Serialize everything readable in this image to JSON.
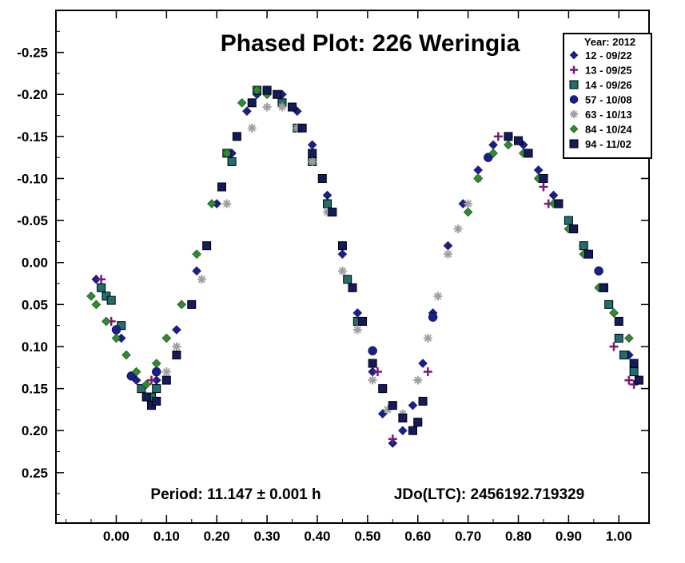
{
  "chart_data": {
    "type": "scatter",
    "title": "Phased Plot: 226 Weringia",
    "xlabel": "",
    "ylabel": "",
    "xlim": [
      -0.12,
      1.06
    ],
    "ylim": [
      0.31,
      -0.3
    ],
    "y_inverted": true,
    "grid": false,
    "x_ticks": [
      {
        "value": 0.0,
        "label": "0.00"
      },
      {
        "value": 0.1,
        "label": "0.10"
      },
      {
        "value": 0.2,
        "label": "0.20"
      },
      {
        "value": 0.3,
        "label": "0.30"
      },
      {
        "value": 0.4,
        "label": "0.40"
      },
      {
        "value": 0.5,
        "label": "0.50"
      },
      {
        "value": 0.6,
        "label": "0.60"
      },
      {
        "value": 0.7,
        "label": "0.70"
      },
      {
        "value": 0.8,
        "label": "0.80"
      },
      {
        "value": 0.9,
        "label": "0.90"
      },
      {
        "value": 1.0,
        "label": "1.00"
      }
    ],
    "y_ticks": [
      {
        "value": -0.25,
        "label": "-0.25"
      },
      {
        "value": -0.2,
        "label": "-0.20"
      },
      {
        "value": -0.15,
        "label": "-0.15"
      },
      {
        "value": -0.1,
        "label": "-0.10"
      },
      {
        "value": -0.05,
        "label": "-0.05"
      },
      {
        "value": 0.0,
        "label": "0.00"
      },
      {
        "value": 0.05,
        "label": "0.05"
      },
      {
        "value": 0.1,
        "label": "0.10"
      },
      {
        "value": 0.15,
        "label": "0.15"
      },
      {
        "value": 0.2,
        "label": "0.20"
      },
      {
        "value": 0.25,
        "label": "0.25"
      }
    ],
    "legend": {
      "title": "Year: 2012",
      "placement": "top-right",
      "entries": [
        {
          "label": "12 - 09/22",
          "marker": "diamond",
          "color": "#1a1f8f"
        },
        {
          "label": "13 - 09/25",
          "marker": "plus",
          "color": "#7a1a7a"
        },
        {
          "label": "14 - 09/26",
          "marker": "square",
          "color": "#1f6f6f"
        },
        {
          "label": "57 - 10/08",
          "marker": "circle",
          "color": "#1a1f8f"
        },
        {
          "label": "63 - 10/13",
          "marker": "asterisk",
          "color": "#a0a0a0"
        },
        {
          "label": "84 - 10/24",
          "marker": "diamond",
          "color": "#2e8b2e"
        },
        {
          "label": "94 - 11/02",
          "marker": "square",
          "color": "#141a5e"
        }
      ]
    },
    "annotations": {
      "period": "Period: 11.147 ± 0.001 h",
      "epoch": "JDo(LTC): 2456192.719329"
    },
    "series": [
      {
        "name": "12 - 09/22",
        "marker": "diamond",
        "color": "#1a1f8f",
        "x": [
          -0.04,
          -0.03,
          0.01,
          0.04,
          0.06,
          0.08,
          0.12,
          0.16,
          0.2,
          0.23,
          0.26,
          0.28,
          0.3,
          0.33,
          0.36,
          0.39,
          0.42,
          0.45,
          0.48,
          0.51,
          0.53,
          0.55,
          0.57,
          0.59,
          0.61,
          0.63,
          0.66,
          0.69,
          0.72,
          0.75,
          0.78,
          0.81,
          0.84,
          0.87,
          0.9,
          0.93,
          0.96,
          0.99,
          1.02
        ],
        "y": [
          0.02,
          0.03,
          0.09,
          0.14,
          0.16,
          0.14,
          0.08,
          0.01,
          -0.07,
          -0.13,
          -0.18,
          -0.2,
          -0.205,
          -0.2,
          -0.18,
          -0.14,
          -0.08,
          -0.01,
          0.06,
          0.13,
          0.18,
          0.215,
          0.2,
          0.17,
          0.12,
          0.06,
          -0.02,
          -0.07,
          -0.11,
          -0.14,
          -0.15,
          -0.14,
          -0.11,
          -0.08,
          -0.05,
          -0.02,
          0.01,
          0.06,
          0.11
        ]
      },
      {
        "name": "13 - 09/25",
        "marker": "plus",
        "color": "#7a1a7a",
        "x": [
          -0.03,
          -0.01,
          0.07,
          0.51,
          0.52,
          0.53,
          0.55,
          0.6,
          0.62,
          0.76,
          0.85,
          0.86,
          0.99,
          1.02,
          1.03
        ],
        "y": [
          0.02,
          0.07,
          0.14,
          0.105,
          0.13,
          0.15,
          0.21,
          0.19,
          0.13,
          -0.15,
          -0.09,
          -0.07,
          0.1,
          0.14,
          0.145
        ]
      },
      {
        "name": "14 - 09/26",
        "marker": "square",
        "color": "#1f6f6f",
        "x": [
          -0.03,
          -0.02,
          -0.01,
          0.01,
          0.05,
          0.07,
          0.08,
          0.22,
          0.23,
          0.28,
          0.33,
          0.36,
          0.39,
          0.42,
          0.46,
          0.48,
          0.85,
          0.88,
          0.9,
          0.93,
          0.97,
          0.98,
          1.0,
          1.01,
          1.03
        ],
        "y": [
          0.03,
          0.04,
          0.045,
          0.075,
          0.15,
          0.16,
          0.15,
          -0.13,
          -0.12,
          -0.205,
          -0.19,
          -0.16,
          -0.12,
          -0.07,
          0.02,
          0.07,
          -0.1,
          -0.07,
          -0.05,
          -0.02,
          0.03,
          0.05,
          0.09,
          0.11,
          0.13
        ]
      },
      {
        "name": "57 - 10/08",
        "marker": "circle",
        "color": "#1a1f8f",
        "x": [
          0.0,
          0.03,
          0.08,
          0.51,
          0.63,
          0.74,
          0.96
        ],
        "y": [
          0.08,
          0.135,
          0.13,
          0.105,
          0.065,
          -0.125,
          0.01
        ]
      },
      {
        "name": "63 - 10/13",
        "marker": "asterisk",
        "color": "#a0a0a0",
        "x": [
          0.1,
          0.12,
          0.17,
          0.22,
          0.27,
          0.3,
          0.33,
          0.36,
          0.39,
          0.42,
          0.45,
          0.48,
          0.51,
          0.54,
          0.57,
          0.6,
          0.62,
          0.64,
          0.66,
          0.68,
          0.7,
          0.72
        ],
        "y": [
          0.13,
          0.1,
          0.02,
          -0.07,
          -0.16,
          -0.185,
          -0.185,
          -0.16,
          -0.12,
          -0.06,
          0.01,
          0.08,
          0.14,
          0.175,
          0.18,
          0.14,
          0.09,
          0.04,
          -0.01,
          -0.04,
          -0.07,
          -0.1
        ]
      },
      {
        "name": "84 - 10/24",
        "marker": "diamond",
        "color": "#2e8b2e",
        "x": [
          -0.05,
          -0.04,
          -0.02,
          0.0,
          0.02,
          0.04,
          0.06,
          0.08,
          0.1,
          0.13,
          0.16,
          0.19,
          0.22,
          0.25,
          0.28,
          0.3,
          0.7,
          0.72,
          0.75,
          0.78,
          0.81,
          0.84,
          0.87,
          0.9,
          0.93,
          0.96,
          0.99,
          1.02
        ],
        "y": [
          0.04,
          0.05,
          0.07,
          0.09,
          0.11,
          0.13,
          0.145,
          0.12,
          0.09,
          0.05,
          -0.01,
          -0.07,
          -0.13,
          -0.19,
          -0.205,
          -0.2,
          -0.06,
          -0.1,
          -0.13,
          -0.14,
          -0.13,
          -0.1,
          -0.07,
          -0.04,
          -0.01,
          0.03,
          0.06,
          0.09
        ]
      },
      {
        "name": "94 - 11/02",
        "marker": "square",
        "color": "#141a5e",
        "x": [
          0.06,
          0.07,
          0.08,
          0.1,
          0.12,
          0.15,
          0.18,
          0.21,
          0.24,
          0.27,
          0.3,
          0.32,
          0.35,
          0.37,
          0.39,
          0.41,
          0.43,
          0.45,
          0.47,
          0.49,
          0.51,
          0.53,
          0.55,
          0.57,
          0.59,
          0.6,
          0.61,
          0.78,
          0.8,
          0.82,
          0.85,
          0.88,
          0.91,
          0.94,
          0.97,
          1.0,
          1.03,
          1.04
        ],
        "y": [
          0.16,
          0.17,
          0.165,
          0.14,
          0.11,
          0.05,
          -0.02,
          -0.09,
          -0.15,
          -0.19,
          -0.205,
          -0.2,
          -0.185,
          -0.16,
          -0.13,
          -0.1,
          -0.06,
          -0.02,
          0.03,
          0.07,
          0.12,
          0.15,
          0.17,
          0.185,
          0.2,
          0.19,
          0.165,
          -0.15,
          -0.145,
          -0.13,
          -0.1,
          -0.07,
          -0.04,
          -0.01,
          0.03,
          0.07,
          0.12,
          0.14
        ]
      }
    ]
  }
}
